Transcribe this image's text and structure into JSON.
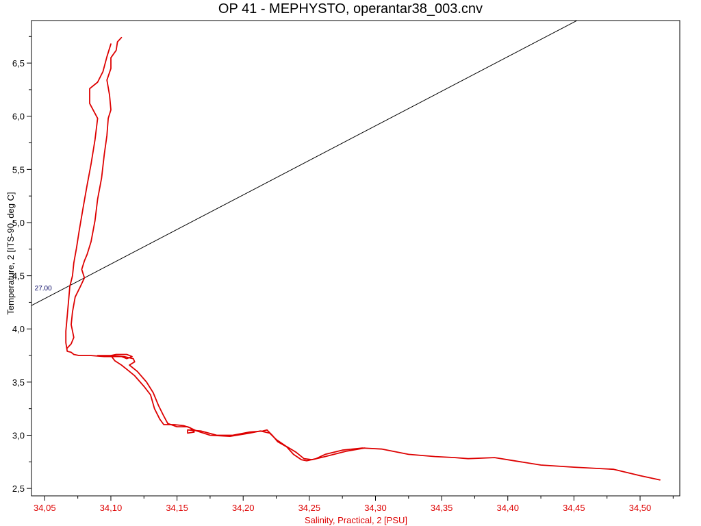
{
  "chart_data": {
    "type": "line",
    "title": "OP 41 - MEPHYSTO, operantar38_003.cnv",
    "xlabel": "Salinity, Practical, 2 [PSU]",
    "ylabel": "Temperature, 2 [ITS-90, deg C]",
    "xlim": [
      34.04,
      34.53
    ],
    "ylim": [
      2.43,
      6.9
    ],
    "x_ticks": [
      "34,05",
      "34,10",
      "34,15",
      "34,20",
      "34,25",
      "34,30",
      "34,35",
      "34,40",
      "34,45",
      "34,50"
    ],
    "y_ticks": [
      "2,5",
      "3,0",
      "3,5",
      "4,0",
      "4,5",
      "5,0",
      "5,5",
      "6,0",
      "6,5"
    ],
    "grid": false,
    "colors": {
      "series": "#dd0000",
      "x_axis_text": "#dd0000",
      "isopycnal": "#000060",
      "isopycnal_label": "#000060"
    },
    "series": [
      {
        "values_xy": [
          [
            34.108,
            6.74
          ],
          [
            34.105,
            6.7
          ],
          [
            34.104,
            6.62
          ],
          [
            34.1,
            6.55
          ],
          [
            34.1,
            6.45
          ],
          [
            34.097,
            6.34
          ],
          [
            34.099,
            6.2
          ],
          [
            34.1,
            6.06
          ],
          [
            34.098,
            5.98
          ],
          [
            34.097,
            5.82
          ],
          [
            34.095,
            5.64
          ],
          [
            34.093,
            5.42
          ],
          [
            34.09,
            5.22
          ],
          [
            34.088,
            5.02
          ],
          [
            34.085,
            4.82
          ],
          [
            34.082,
            4.7
          ],
          [
            34.08,
            4.64
          ],
          [
            34.078,
            4.56
          ],
          [
            34.08,
            4.48
          ],
          [
            34.077,
            4.4
          ],
          [
            34.073,
            4.3
          ],
          [
            34.071,
            4.16
          ],
          [
            34.07,
            4.04
          ],
          [
            34.072,
            3.92
          ],
          [
            34.07,
            3.86
          ],
          [
            34.067,
            3.82
          ]
        ]
      },
      {
        "values_xy": [
          [
            34.1,
            6.68
          ],
          [
            34.097,
            6.56
          ],
          [
            34.094,
            6.42
          ],
          [
            34.09,
            6.32
          ],
          [
            34.084,
            6.26
          ],
          [
            34.084,
            6.12
          ],
          [
            34.09,
            5.98
          ],
          [
            34.088,
            5.78
          ],
          [
            34.085,
            5.55
          ],
          [
            34.082,
            5.35
          ],
          [
            34.079,
            5.14
          ],
          [
            34.076,
            4.92
          ],
          [
            34.074,
            4.76
          ],
          [
            34.072,
            4.62
          ],
          [
            34.071,
            4.5
          ],
          [
            34.069,
            4.4
          ],
          [
            34.068,
            4.26
          ],
          [
            34.067,
            4.12
          ],
          [
            34.066,
            3.98
          ],
          [
            34.066,
            3.87
          ],
          [
            34.067,
            3.79
          ],
          [
            34.07,
            3.78
          ],
          [
            34.072,
            3.76
          ],
          [
            34.076,
            3.75
          ],
          [
            34.085,
            3.75
          ],
          [
            34.095,
            3.74
          ],
          [
            34.1,
            3.74
          ],
          [
            34.108,
            3.74
          ],
          [
            34.112,
            3.72
          ],
          [
            34.116,
            3.74
          ],
          [
            34.112,
            3.76
          ],
          [
            34.104,
            3.76
          ],
          [
            34.1,
            3.75
          ],
          [
            34.103,
            3.7
          ],
          [
            34.108,
            3.66
          ],
          [
            34.112,
            3.62
          ],
          [
            34.118,
            3.56
          ],
          [
            34.125,
            3.46
          ],
          [
            34.13,
            3.38
          ],
          [
            34.133,
            3.25
          ],
          [
            34.137,
            3.15
          ],
          [
            34.14,
            3.1
          ],
          [
            34.148,
            3.1
          ],
          [
            34.155,
            3.09
          ],
          [
            34.16,
            3.07
          ],
          [
            34.163,
            3.03
          ],
          [
            34.158,
            3.02
          ],
          [
            34.158,
            3.05
          ],
          [
            34.168,
            3.04
          ],
          [
            34.18,
            3.0
          ],
          [
            34.192,
            3.0
          ],
          [
            34.205,
            3.03
          ],
          [
            34.215,
            3.04
          ],
          [
            34.218,
            3.05
          ],
          [
            34.222,
            3.0
          ],
          [
            34.226,
            2.94
          ],
          [
            34.233,
            2.89
          ],
          [
            34.238,
            2.82
          ],
          [
            34.244,
            2.77
          ],
          [
            34.248,
            2.76
          ],
          [
            34.255,
            2.78
          ],
          [
            34.262,
            2.82
          ],
          [
            34.275,
            2.86
          ],
          [
            34.29,
            2.88
          ],
          [
            34.305,
            2.87
          ],
          [
            34.325,
            2.82
          ],
          [
            34.345,
            2.8
          ],
          [
            34.36,
            2.79
          ],
          [
            34.37,
            2.78
          ],
          [
            34.39,
            2.79
          ],
          [
            34.405,
            2.76
          ],
          [
            34.425,
            2.72
          ],
          [
            34.45,
            2.7
          ],
          [
            34.48,
            2.68
          ],
          [
            34.5,
            2.62
          ],
          [
            34.515,
            2.58
          ]
        ]
      },
      {
        "values_xy": [
          [
            34.09,
            3.75
          ],
          [
            34.1,
            3.75
          ],
          [
            34.11,
            3.74
          ],
          [
            34.117,
            3.72
          ],
          [
            34.118,
            3.69
          ],
          [
            34.114,
            3.66
          ],
          [
            34.12,
            3.6
          ],
          [
            34.127,
            3.5
          ],
          [
            34.132,
            3.4
          ],
          [
            34.136,
            3.28
          ],
          [
            34.14,
            3.18
          ],
          [
            34.143,
            3.11
          ],
          [
            34.15,
            3.08
          ],
          [
            34.158,
            3.08
          ],
          [
            34.165,
            3.04
          ],
          [
            34.175,
            3.0
          ],
          [
            34.19,
            2.99
          ],
          [
            34.205,
            3.02
          ],
          [
            34.213,
            3.04
          ],
          [
            34.22,
            3.02
          ],
          [
            34.225,
            2.96
          ],
          [
            34.232,
            2.9
          ],
          [
            34.24,
            2.84
          ],
          [
            34.246,
            2.78
          ],
          [
            34.252,
            2.77
          ],
          [
            34.262,
            2.8
          ],
          [
            34.278,
            2.85
          ],
          [
            34.292,
            2.88
          ]
        ]
      }
    ],
    "isopycnal": {
      "label": "27.00",
      "line": [
        [
          34.04,
          4.22
        ],
        [
          34.46,
          6.95
        ]
      ]
    }
  }
}
